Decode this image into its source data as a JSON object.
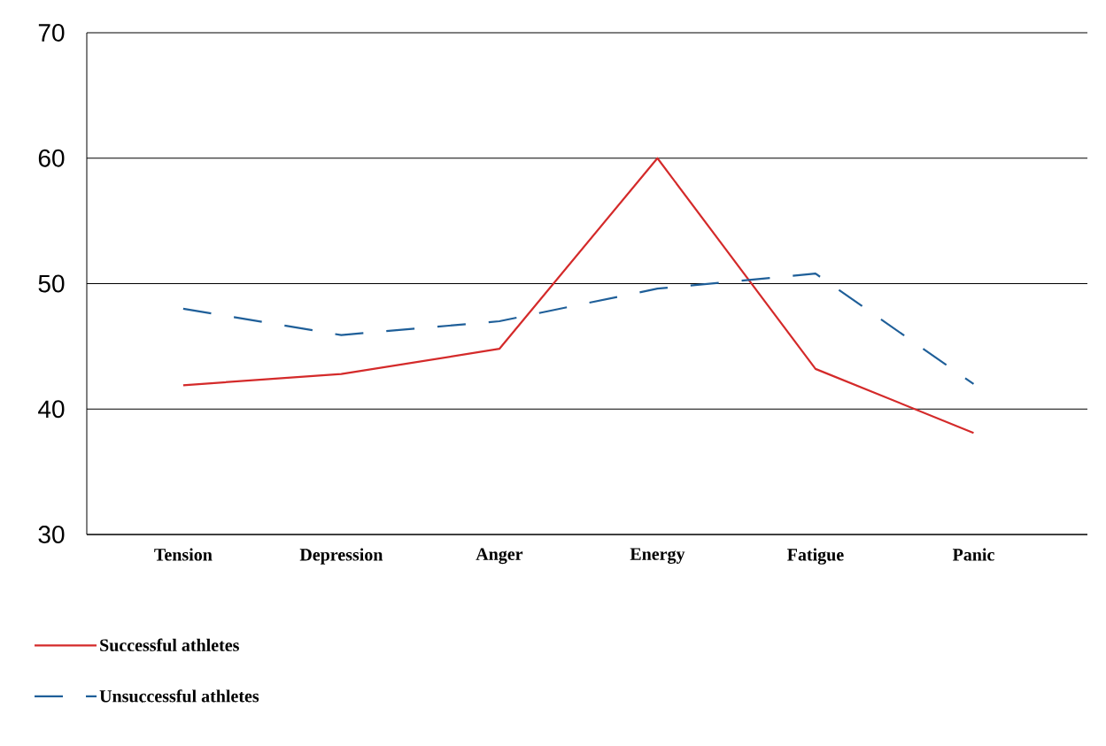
{
  "chart_data": {
    "type": "line",
    "categories": [
      "Tension",
      "Depression",
      "Anger",
      "Energy",
      "Fatigue",
      "Panic"
    ],
    "series": [
      {
        "name": "Successful athletes",
        "color": "#d42a2a",
        "line_style": "solid",
        "values": [
          41.9,
          42.8,
          44.8,
          60,
          43.2,
          38.1
        ]
      },
      {
        "name": "Unsuccessful athletes",
        "color": "#1f5f99",
        "line_style": "dashed",
        "values": [
          48,
          45.9,
          47,
          49.6,
          50.8,
          42
        ]
      }
    ],
    "ylim": [
      30,
      70
    ],
    "yticks": [
      30,
      40,
      50,
      60,
      70
    ],
    "grid": "y",
    "legend": "bottom left"
  }
}
